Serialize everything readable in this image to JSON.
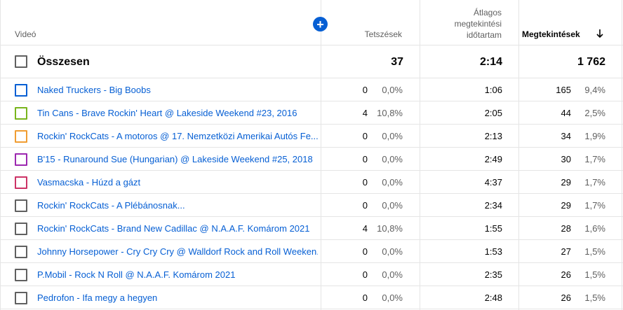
{
  "header": {
    "video": "Videó",
    "likes": "Tetszések",
    "avg_line1": "Átlagos",
    "avg_line2": "megtekintési",
    "avg_line3": "időtartam",
    "views": "Megtekintések",
    "add_icon": "plus-icon",
    "sort_icon": "arrow-down-icon"
  },
  "total": {
    "label": "Összesen",
    "likes": "37",
    "avg": "2:14",
    "views": "1 762"
  },
  "colors": {
    "accent": "#065fd4",
    "checkbox_default": "#606060"
  },
  "rows": [
    {
      "title": "Naked Truckers - Big Boobs",
      "likes": "0",
      "likes_pct": "0,0%",
      "avg": "1:06",
      "views": "165",
      "views_pct": "9,4%",
      "color": "#065fd4"
    },
    {
      "title": "Tin Cans - Brave Rockin' Heart @ Lakeside Weekend #23, 2016",
      "likes": "4",
      "likes_pct": "10,8%",
      "avg": "2:05",
      "views": "44",
      "views_pct": "2,5%",
      "color": "#79b51c"
    },
    {
      "title": "Rockin' RockCats - A motoros @ 17. Nemzetközi Amerikai Autós Fe...",
      "likes": "0",
      "likes_pct": "0,0%",
      "avg": "2:13",
      "views": "34",
      "views_pct": "1,9%",
      "color": "#f09d32"
    },
    {
      "title": "B'15 - Runaround Sue (Hungarian) @ Lakeside Weekend #25, 2018",
      "likes": "0",
      "likes_pct": "0,0%",
      "avg": "2:49",
      "views": "30",
      "views_pct": "1,7%",
      "color": "#9c27b0"
    },
    {
      "title": "Vasmacska - Húzd a gázt",
      "likes": "0",
      "likes_pct": "0,0%",
      "avg": "4:37",
      "views": "29",
      "views_pct": "1,7%",
      "color": "#cc3366"
    },
    {
      "title": "Rockin' RockCats - A Plébánosnak...",
      "likes": "0",
      "likes_pct": "0,0%",
      "avg": "2:34",
      "views": "29",
      "views_pct": "1,7%",
      "color": "#606060"
    },
    {
      "title": "Rockin' RockCats - Brand New Cadillac @ N.A.A.F. Komárom 2021",
      "likes": "4",
      "likes_pct": "10,8%",
      "avg": "1:55",
      "views": "28",
      "views_pct": "1,6%",
      "color": "#606060"
    },
    {
      "title": "Johnny Horsepower - Cry Cry Cry @ Walldorf Rock and Roll Weeken...",
      "likes": "0",
      "likes_pct": "0,0%",
      "avg": "1:53",
      "views": "27",
      "views_pct": "1,5%",
      "color": "#606060"
    },
    {
      "title": "P.Mobil - Rock N Roll @ N.A.A.F. Komárom 2021",
      "likes": "0",
      "likes_pct": "0,0%",
      "avg": "2:35",
      "views": "26",
      "views_pct": "1,5%",
      "color": "#606060"
    },
    {
      "title": "Pedrofon - Ifa megy a hegyen",
      "likes": "0",
      "likes_pct": "0,0%",
      "avg": "2:48",
      "views": "26",
      "views_pct": "1,5%",
      "color": "#606060"
    }
  ]
}
